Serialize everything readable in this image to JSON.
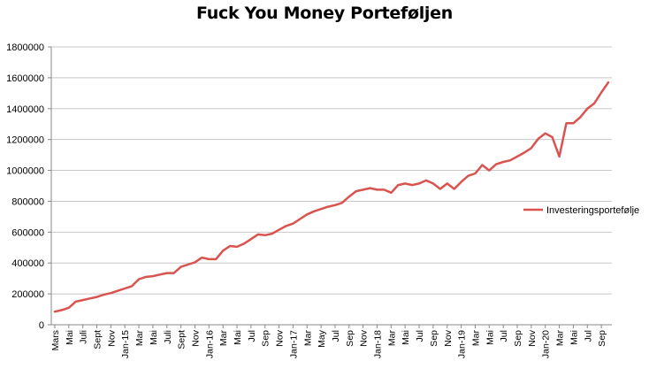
{
  "chart_data": {
    "type": "line",
    "title": "Fuck You Money Porteføljen",
    "xlabel": "",
    "ylabel": "",
    "ylim": [
      0,
      1800000
    ],
    "yticks": [
      "0",
      "200000",
      "400000",
      "600000",
      "800000",
      "1000000",
      "1200000",
      "1400000",
      "1600000",
      "1800000"
    ],
    "grid": "horizontal",
    "legend_position": "right",
    "x_tick_labels": [
      "Mars",
      "Mai",
      "Juli",
      "Sept",
      "Nov",
      "Jan-15",
      "Mar",
      "Mai",
      "Juli",
      "Sept",
      "Nov",
      "Jan-16",
      "Mar",
      "Mai",
      "Jul",
      "Sep",
      "Nov",
      "Jan-17",
      "Mar",
      "May",
      "Jul",
      "Sep",
      "Nov",
      "Jan-18",
      "Mar",
      "Mai",
      "Jul",
      "Sep",
      "Nov",
      "Jan-19",
      "Mar",
      "Mai",
      "Jul",
      "Sep",
      "Nov",
      "Jan-20",
      "Mar",
      "Mai",
      "Jul",
      "Sep"
    ],
    "series": [
      {
        "name": "Investeringsportefølje",
        "color": "#d9534f",
        "values": [
          85000,
          95000,
          110000,
          150000,
          160000,
          170000,
          180000,
          195000,
          205000,
          220000,
          235000,
          250000,
          295000,
          310000,
          315000,
          325000,
          335000,
          335000,
          375000,
          390000,
          405000,
          435000,
          425000,
          425000,
          480000,
          510000,
          505000,
          525000,
          555000,
          585000,
          580000,
          590000,
          615000,
          640000,
          655000,
          685000,
          715000,
          735000,
          750000,
          765000,
          775000,
          790000,
          830000,
          865000,
          875000,
          885000,
          875000,
          875000,
          855000,
          905000,
          915000,
          905000,
          915000,
          935000,
          915000,
          880000,
          915000,
          880000,
          925000,
          965000,
          980000,
          1035000,
          1000000,
          1040000,
          1055000,
          1065000,
          1090000,
          1115000,
          1145000,
          1205000,
          1240000,
          1215000,
          1090000,
          1305000,
          1305000,
          1345000,
          1400000,
          1435000,
          1505000,
          1570000
        ]
      }
    ]
  }
}
